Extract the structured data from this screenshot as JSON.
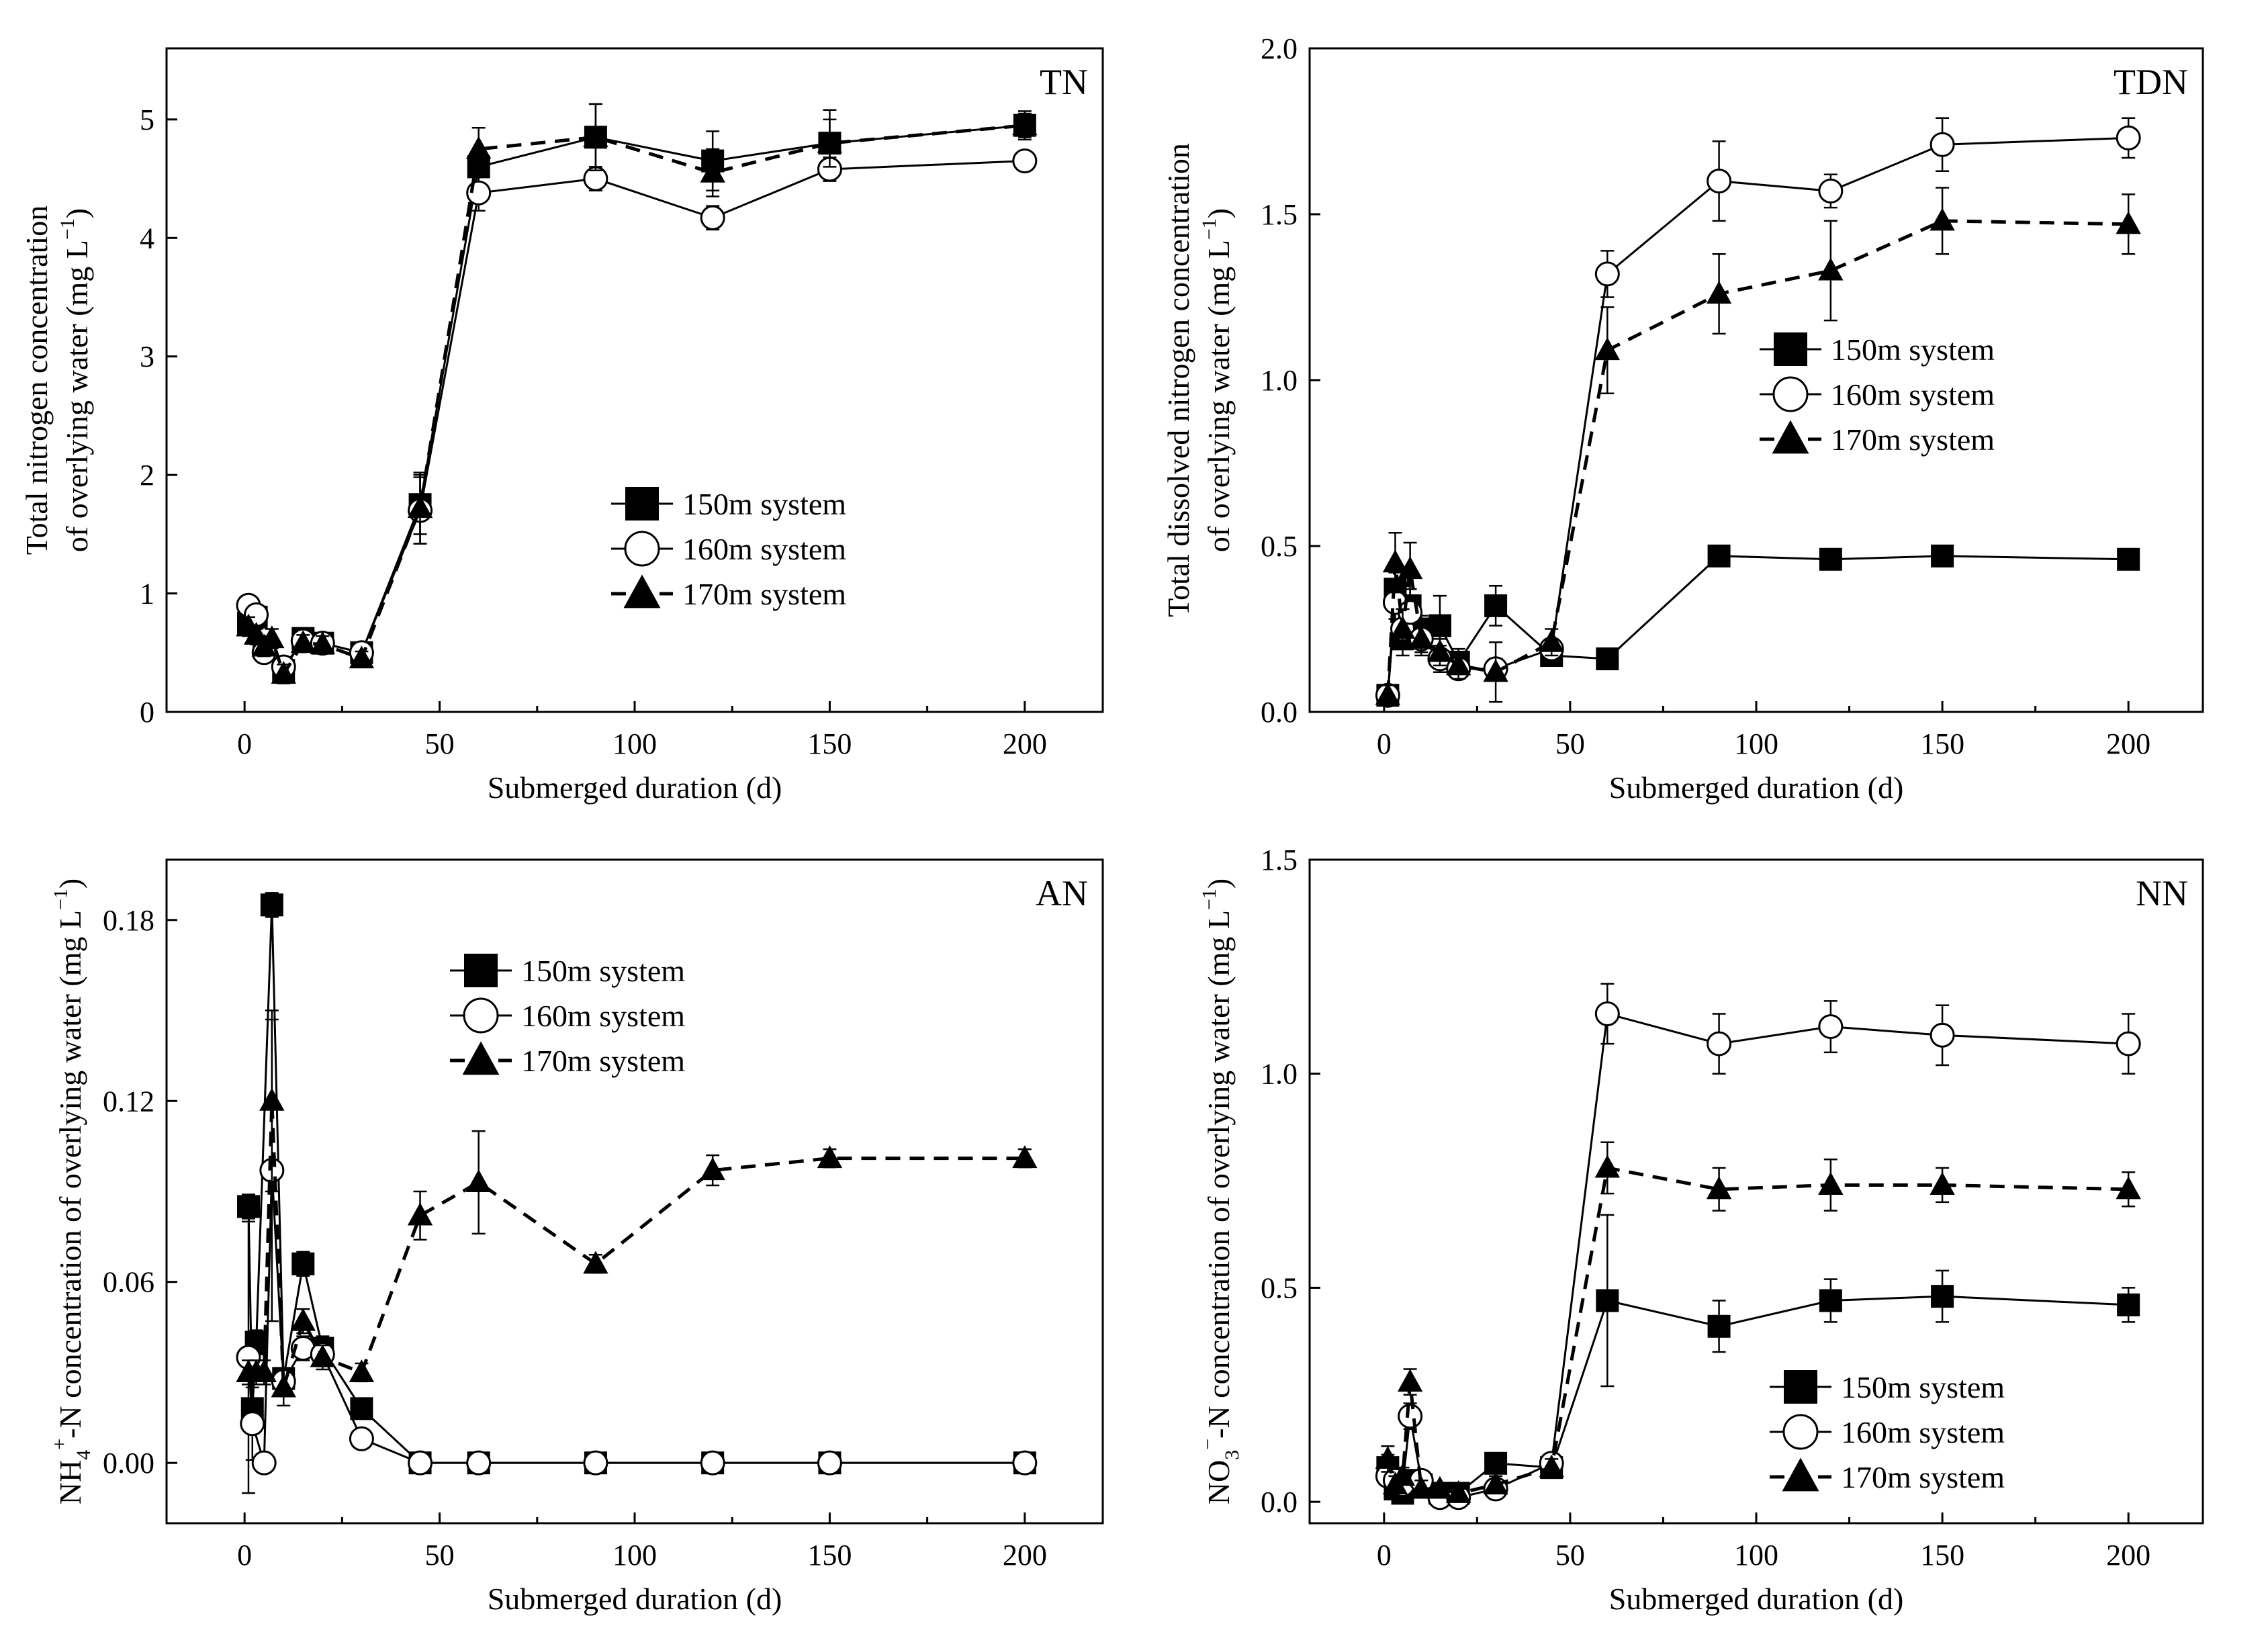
{
  "chart_data": [
    {
      "type": "line",
      "panel_label": "TN",
      "xlabel": "Submerged duration (d)",
      "ylabel_lines": [
        "Total nitrogen concentration",
        "of overlying water (mg L",
        "−1",
        ")"
      ],
      "xlim": [
        -20,
        220
      ],
      "ylim": [
        0,
        5.6
      ],
      "xticks": [
        0,
        50,
        100,
        150,
        200
      ],
      "yticks": [
        0,
        1,
        2,
        3,
        4,
        5
      ],
      "ytick_labels": [
        "0",
        "1",
        "2",
        "3",
        "4",
        "5"
      ],
      "legend_position": "center-right",
      "series": [
        {
          "name": "150m system",
          "marker": "square",
          "linestyle": "solid",
          "x": [
            1,
            3,
            5,
            10,
            15,
            20,
            30,
            45,
            60,
            90,
            120,
            150,
            200
          ],
          "y": [
            0.75,
            0.8,
            0.55,
            0.35,
            0.62,
            0.58,
            0.5,
            1.75,
            4.6,
            4.85,
            4.65,
            4.8,
            4.95
          ],
          "err": [
            0.1,
            0.1,
            0.08,
            0.08,
            0.07,
            0.07,
            0.06,
            0.25,
            0.15,
            0.28,
            0.25,
            0.28,
            0.12
          ]
        },
        {
          "name": "160m system",
          "marker": "circle",
          "linestyle": "solid",
          "x": [
            1,
            3,
            5,
            10,
            15,
            20,
            30,
            45,
            60,
            90,
            120,
            150,
            200
          ],
          "y": [
            0.9,
            0.82,
            0.5,
            0.38,
            0.6,
            0.58,
            0.5,
            1.7,
            4.38,
            4.5,
            4.17,
            4.58,
            4.65
          ],
          "err": [
            0.08,
            0.08,
            0.08,
            0.08,
            0.07,
            0.07,
            0.06,
            0.28,
            0.15,
            0.1,
            0.1,
            0.1,
            0.08
          ]
        },
        {
          "name": "170m system",
          "marker": "triangle",
          "linestyle": "dashed",
          "x": [
            1,
            3,
            5,
            7,
            10,
            15,
            20,
            30,
            45,
            60,
            90,
            120,
            150,
            200
          ],
          "y": [
            0.72,
            0.65,
            0.55,
            0.62,
            0.32,
            0.58,
            0.57,
            0.45,
            1.72,
            4.75,
            4.85,
            4.55,
            4.8,
            4.95
          ],
          "err": [
            0.08,
            0.08,
            0.08,
            0.08,
            0.08,
            0.07,
            0.07,
            0.06,
            0.3,
            0.18,
            0.28,
            0.2,
            0.2,
            0.1
          ]
        }
      ]
    },
    {
      "type": "line",
      "panel_label": "TDN",
      "xlabel": "Submerged duration (d)",
      "ylabel_lines": [
        "Total dissolved nitrogen concentration",
        "of overlying water (mg L",
        "−1",
        ")"
      ],
      "xlim": [
        -20,
        220
      ],
      "ylim": [
        0,
        2.0
      ],
      "xticks": [
        0,
        50,
        100,
        150,
        200
      ],
      "yticks": [
        0,
        0.5,
        1.0,
        1.5,
        2.0
      ],
      "ytick_labels": [
        "0.0",
        "0.5",
        "1.0",
        "1.5",
        "2.0"
      ],
      "legend_position": "center-right",
      "series": [
        {
          "name": "150m system",
          "marker": "square",
          "linestyle": "solid",
          "x": [
            1,
            3,
            5,
            7,
            10,
            15,
            20,
            30,
            45,
            60,
            90,
            120,
            150,
            200
          ],
          "y": [
            0.05,
            0.37,
            0.22,
            0.32,
            0.25,
            0.26,
            0.15,
            0.32,
            0.17,
            0.16,
            0.47,
            0.46,
            0.47,
            0.46
          ],
          "err": [
            0.03,
            0.05,
            0.05,
            0.05,
            0.04,
            0.09,
            0.04,
            0.06,
            0.03,
            0.02,
            0.02,
            0.03,
            0.02,
            0.02
          ]
        },
        {
          "name": "160m system",
          "marker": "circle",
          "linestyle": "solid",
          "x": [
            1,
            3,
            5,
            7,
            10,
            15,
            20,
            30,
            45,
            60,
            90,
            120,
            150,
            200
          ],
          "y": [
            0.05,
            0.33,
            0.25,
            0.3,
            0.22,
            0.16,
            0.13,
            0.13,
            0.19,
            1.32,
            1.6,
            1.57,
            1.71,
            1.73
          ],
          "err": [
            0.03,
            0.05,
            0.05,
            0.05,
            0.04,
            0.04,
            0.03,
            0.03,
            0.03,
            0.07,
            0.12,
            0.05,
            0.08,
            0.06
          ]
        },
        {
          "name": "170m system",
          "marker": "triangle",
          "linestyle": "dashed",
          "x": [
            1,
            3,
            5,
            7,
            10,
            15,
            20,
            30,
            45,
            60,
            90,
            120,
            150,
            200
          ],
          "y": [
            0.05,
            0.45,
            0.25,
            0.43,
            0.22,
            0.18,
            0.14,
            0.12,
            0.21,
            1.09,
            1.26,
            1.33,
            1.48,
            1.47
          ],
          "err": [
            0.03,
            0.09,
            0.06,
            0.08,
            0.05,
            0.04,
            0.04,
            0.09,
            0.04,
            0.13,
            0.12,
            0.15,
            0.1,
            0.09
          ]
        }
      ]
    },
    {
      "type": "line",
      "panel_label": "AN",
      "xlabel": "Submerged duration (d)",
      "ylabel_parts": [
        "NH",
        "4",
        "+",
        "-N concentration of overlying water (mg L",
        "−1",
        ")"
      ],
      "xlim": [
        -20,
        220
      ],
      "ylim": [
        -0.02,
        0.2
      ],
      "xticks": [
        0,
        50,
        100,
        150,
        200
      ],
      "yticks": [
        0,
        0.06,
        0.12,
        0.18
      ],
      "ytick_labels": [
        "0.00",
        "0.06",
        "0.12",
        "0.18"
      ],
      "legend_position": "top-center",
      "series": [
        {
          "name": "150m system",
          "marker": "square",
          "linestyle": "solid",
          "x": [
            1,
            2,
            3,
            7,
            10,
            15,
            20,
            30,
            45,
            60,
            90,
            120,
            150,
            200
          ],
          "y": [
            0.085,
            0.018,
            0.04,
            0.185,
            0.028,
            0.066,
            0.038,
            0.018,
            0.0,
            0.0,
            0.0,
            0.0,
            0.0,
            0.0
          ],
          "err": [
            0.004,
            0.002,
            0.004,
            0.004,
            0.003,
            0.004,
            0.004,
            0.002,
            0.0,
            0.0,
            0.0,
            0.0,
            0.0,
            0.0
          ]
        },
        {
          "name": "160m system",
          "marker": "circle",
          "linestyle": "solid",
          "x": [
            1,
            2,
            5,
            7,
            10,
            15,
            20,
            30,
            45,
            60,
            90,
            120,
            150,
            200
          ],
          "y": [
            0.035,
            0.013,
            0.0,
            0.097,
            0.027,
            0.038,
            0.036,
            0.008,
            0.0,
            0.0,
            0.0,
            0.0,
            0.0,
            0.0
          ],
          "err": [
            0.045,
            0.012,
            0.002,
            0.05,
            0.004,
            0.004,
            0.004,
            0.003,
            0.0,
            0.0,
            0.0,
            0.0,
            0.0,
            0.0
          ]
        },
        {
          "name": "170m system",
          "marker": "triangle",
          "linestyle": "dashed",
          "x": [
            1,
            3,
            5,
            7,
            10,
            15,
            20,
            30,
            45,
            60,
            90,
            120,
            150,
            200
          ],
          "y": [
            0.03,
            0.03,
            0.03,
            0.12,
            0.025,
            0.047,
            0.035,
            0.03,
            0.082,
            0.093,
            0.066,
            0.097,
            0.101,
            0.101
          ],
          "err": [
            0.004,
            0.004,
            0.004,
            0.03,
            0.006,
            0.004,
            0.004,
            0.003,
            0.008,
            0.017,
            0.003,
            0.005,
            0.003,
            0.003
          ]
        }
      ]
    },
    {
      "type": "line",
      "panel_label": "NN",
      "xlabel": "Submerged duration (d)",
      "ylabel_parts": [
        "NO",
        "3",
        "−",
        "-N concentration of overlying water (mg L",
        "−1",
        ")"
      ],
      "xlim": [
        -20,
        220
      ],
      "ylim": [
        -0.05,
        1.5
      ],
      "xticks": [
        0,
        50,
        100,
        150,
        200
      ],
      "yticks": [
        0,
        0.5,
        1.0,
        1.5
      ],
      "ytick_labels": [
        "0.0",
        "0.5",
        "1.0",
        "1.5"
      ],
      "legend_position": "bottom-right",
      "series": [
        {
          "name": "150m system",
          "marker": "square",
          "linestyle": "solid",
          "x": [
            1,
            3,
            5,
            7,
            10,
            15,
            20,
            30,
            45,
            60,
            90,
            120,
            150,
            200
          ],
          "y": [
            0.08,
            0.03,
            0.02,
            0.05,
            0.04,
            0.02,
            0.02,
            0.09,
            0.08,
            0.47,
            0.41,
            0.47,
            0.48,
            0.46
          ],
          "err": [
            0.03,
            0.02,
            0.02,
            0.02,
            0.02,
            0.01,
            0.01,
            0.02,
            0.02,
            0.2,
            0.06,
            0.05,
            0.06,
            0.04
          ]
        },
        {
          "name": "160m system",
          "marker": "circle",
          "linestyle": "solid",
          "x": [
            1,
            3,
            5,
            7,
            10,
            15,
            20,
            30,
            45,
            60,
            90,
            120,
            150,
            200
          ],
          "y": [
            0.06,
            0.05,
            0.04,
            0.2,
            0.05,
            0.01,
            0.01,
            0.03,
            0.09,
            1.14,
            1.07,
            1.11,
            1.09,
            1.07
          ],
          "err": [
            0.02,
            0.02,
            0.02,
            0.03,
            0.02,
            0.01,
            0.01,
            0.02,
            0.02,
            0.07,
            0.07,
            0.06,
            0.07,
            0.07
          ]
        },
        {
          "name": "170m system",
          "marker": "triangle",
          "linestyle": "dashed",
          "x": [
            1,
            3,
            5,
            7,
            10,
            15,
            20,
            30,
            45,
            60,
            90,
            120,
            150,
            200
          ],
          "y": [
            0.1,
            0.04,
            0.06,
            0.28,
            0.03,
            0.03,
            0.02,
            0.04,
            0.08,
            0.78,
            0.73,
            0.74,
            0.74,
            0.73
          ],
          "err": [
            0.03,
            0.02,
            0.02,
            0.03,
            0.02,
            0.01,
            0.01,
            0.02,
            0.02,
            0.06,
            0.05,
            0.06,
            0.04,
            0.04
          ]
        }
      ]
    }
  ]
}
